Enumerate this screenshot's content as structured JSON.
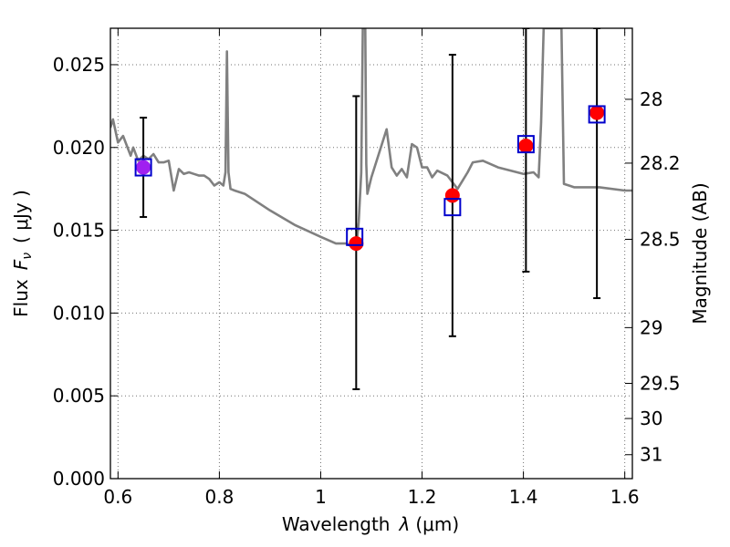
{
  "chart_data": {
    "type": "scatter",
    "xlabel_text": "Wavelength",
    "xlabel_symbol": "λ",
    "xlabel_unit": "(μm)",
    "ylabel_text": "Flux",
    "ylabel_symbol": "F",
    "ylabel_sub": "ν",
    "ylabel_unit": "( μJy )",
    "ylabel_right": "Magnitude (AB)",
    "xlim": [
      0.585,
      1.615
    ],
    "ylim": [
      0.0,
      0.0272
    ],
    "grid": true,
    "x_ticks": [
      0.6,
      0.8,
      1.0,
      1.2,
      1.4,
      1.6
    ],
    "x_tick_labels": [
      "0.6",
      "0.8",
      "1",
      "1.2",
      "1.4",
      "1.6"
    ],
    "y_ticks": [
      0.0,
      0.005,
      0.01,
      0.015,
      0.02,
      0.025
    ],
    "y_tick_labels": [
      "0.000",
      "0.005",
      "0.010",
      "0.015",
      "0.020",
      "0.025"
    ],
    "right_ticks_mag": [
      28,
      28.2,
      28.5,
      29,
      29.5,
      30,
      31
    ],
    "right_tick_labels": [
      "28",
      "28.2",
      "28.5",
      "29",
      "29.5",
      "30",
      "31"
    ],
    "colors": {
      "model": "#808080",
      "observed": "#ff0000",
      "model_box": "#0000cc",
      "error": "#000000",
      "overlap": "#a020f0"
    },
    "series": [
      {
        "name": "model spectrum",
        "type": "line",
        "x": [
          0.585,
          0.59,
          0.6,
          0.61,
          0.625,
          0.63,
          0.64,
          0.65,
          0.66,
          0.67,
          0.68,
          0.69,
          0.7,
          0.71,
          0.72,
          0.73,
          0.74,
          0.75,
          0.76,
          0.77,
          0.78,
          0.79,
          0.8,
          0.808,
          0.812,
          0.815,
          0.818,
          0.822,
          0.83,
          0.85,
          0.9,
          0.95,
          1.0,
          1.03,
          1.05,
          1.07,
          1.075,
          1.08,
          1.083,
          1.085,
          1.088,
          1.09,
          1.092,
          1.1,
          1.13,
          1.14,
          1.15,
          1.16,
          1.17,
          1.18,
          1.19,
          1.2,
          1.21,
          1.22,
          1.23,
          1.25,
          1.27,
          1.29,
          1.3,
          1.32,
          1.35,
          1.4,
          1.42,
          1.43,
          1.435,
          1.44,
          1.445,
          1.45,
          1.46,
          1.47,
          1.475,
          1.48,
          1.49,
          1.5,
          1.55,
          1.6,
          1.615
        ],
        "y": [
          0.0212,
          0.0217,
          0.0203,
          0.0207,
          0.0195,
          0.02,
          0.0192,
          0.0195,
          0.0193,
          0.0196,
          0.0191,
          0.0191,
          0.0192,
          0.0174,
          0.0187,
          0.0184,
          0.0185,
          0.0184,
          0.0183,
          0.0183,
          0.0181,
          0.0177,
          0.0179,
          0.0177,
          0.0185,
          0.0258,
          0.0185,
          0.0175,
          0.0174,
          0.0172,
          0.0162,
          0.0153,
          0.0146,
          0.0142,
          0.0142,
          0.0139,
          0.0155,
          0.0185,
          0.0272,
          0.0272,
          0.0272,
          0.019,
          0.0172,
          0.0182,
          0.0211,
          0.0188,
          0.0183,
          0.0187,
          0.0182,
          0.0202,
          0.02,
          0.0188,
          0.0188,
          0.0182,
          0.0186,
          0.0183,
          0.0175,
          0.0185,
          0.0191,
          0.0192,
          0.0188,
          0.0184,
          0.0185,
          0.0182,
          0.0215,
          0.0272,
          0.0272,
          0.0272,
          0.0272,
          0.0272,
          0.0272,
          0.0178,
          0.0177,
          0.0176,
          0.0176,
          0.0174,
          0.0174
        ]
      },
      {
        "name": "observed",
        "type": "scatter_with_errors",
        "x": [
          0.65,
          1.07,
          1.26,
          1.405,
          1.545
        ],
        "y": [
          0.0188,
          0.0142,
          0.0171,
          0.0201,
          0.0221
        ],
        "yerr_low": [
          0.0158,
          0.0054,
          0.0086,
          0.0125,
          0.0109
        ],
        "yerr_high": [
          0.0218,
          0.0231,
          0.0256,
          0.0272,
          0.0272
        ]
      },
      {
        "name": "model photometry",
        "type": "square_markers",
        "x": [
          0.65,
          1.067,
          1.26,
          1.405,
          1.545
        ],
        "y": [
          0.0188,
          0.0146,
          0.0164,
          0.0202,
          0.022
        ]
      }
    ]
  }
}
